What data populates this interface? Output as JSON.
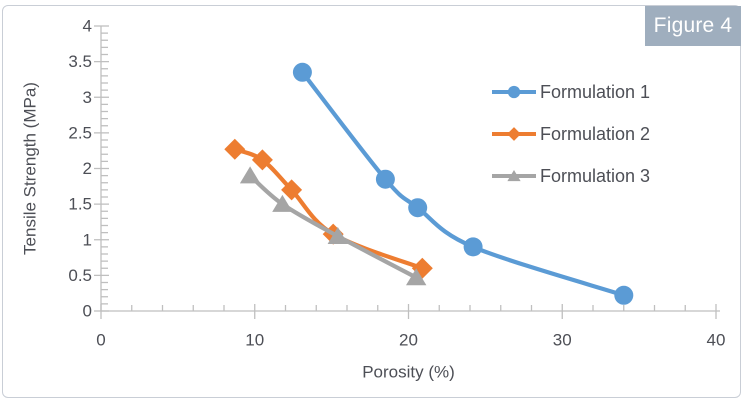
{
  "figure_label": "Figure 4",
  "chart_data": {
    "type": "line",
    "title": "",
    "xlabel": "Porosity (%)",
    "ylabel": "Tensile Strength (MPa)",
    "xlim": [
      0,
      40
    ],
    "ylim": [
      0,
      4
    ],
    "grid": false,
    "legend_position": "inside-right-top",
    "xticks": {
      "values": [
        0,
        10,
        20,
        30,
        40
      ],
      "labels": [
        "0",
        "10",
        "20",
        "30",
        "40"
      ],
      "minor_step": 2
    },
    "yticks": {
      "values": [
        0,
        0.5,
        1,
        1.5,
        2,
        2.5,
        3,
        3.5,
        4
      ],
      "labels": [
        "0",
        "0.5",
        "1",
        "1.5",
        "2",
        "2.5",
        "3",
        "3.5",
        "4"
      ],
      "minor_step": 0.1
    },
    "series": [
      {
        "name": "Formulation 1",
        "color": "#5B9BD5",
        "marker": "circle",
        "points": [
          [
            13.1,
            3.35
          ],
          [
            18.5,
            1.85
          ],
          [
            20.6,
            1.45
          ],
          [
            24.2,
            0.9
          ],
          [
            34.0,
            0.22
          ]
        ]
      },
      {
        "name": "Formulation 2",
        "color": "#ED7D31",
        "marker": "diamond",
        "points": [
          [
            8.7,
            2.27
          ],
          [
            10.5,
            2.12
          ],
          [
            12.4,
            1.7
          ],
          [
            15.1,
            1.08
          ],
          [
            20.9,
            0.6
          ]
        ]
      },
      {
        "name": "Formulation 3",
        "color": "#A5A5A5",
        "marker": "triangle",
        "points": [
          [
            9.7,
            1.9
          ],
          [
            11.8,
            1.5
          ],
          [
            15.4,
            1.05
          ],
          [
            20.5,
            0.47
          ]
        ]
      }
    ]
  },
  "colors": {
    "badge_bg": "#9FAEBE",
    "badge_text": "#FFFFFF",
    "axis_line": "#BFBFBF",
    "tick_label": "#4D4F56",
    "axis_title": "#4D4F56",
    "legend_text": "#4D4F56",
    "frame_border": "#C9CED6"
  }
}
